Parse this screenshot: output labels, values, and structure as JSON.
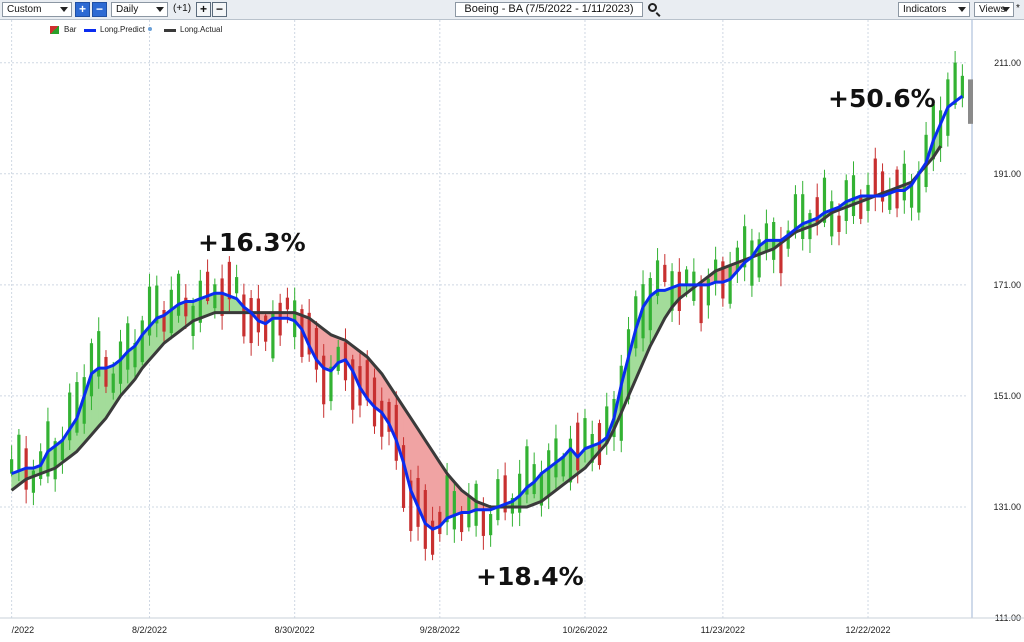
{
  "toolbar": {
    "layout_select": "Custom",
    "period_select": "Daily",
    "offset_label": "(+1)",
    "plus_label": "+",
    "minus_label": "−",
    "chart_title": "Boeing - BA (7/5/2022 - 1/11/2023)",
    "indicators_label": "Indicators",
    "views_label": "Views",
    "pin_label": "*"
  },
  "legend": [
    "Bar",
    "Long.Predict",
    "Long.Actual"
  ],
  "annotations": [
    "+16.3%",
    "+18.4%",
    "+50.6%"
  ],
  "colors": {
    "predict": "#0a2cf0",
    "actual": "#3a3a3a",
    "fill_up": "#a3dc9a",
    "fill_down": "#f0a3a3",
    "bull": "#33b233",
    "bear": "#c83030",
    "grid": "#cfd8e3"
  },
  "chart_data": {
    "type": "line",
    "title": "Boeing - BA (7/5/2022 - 1/11/2023)",
    "y_ticks": [
      "111.00",
      "131.00",
      "151.00",
      "171.00",
      "191.00",
      "211.00"
    ],
    "ylim": [
      111,
      216
    ],
    "x_ticks": [
      {
        "label": "/2022",
        "bar": 0
      },
      {
        "label": "8/2/2022",
        "bar": 19
      },
      {
        "label": "8/30/2022",
        "bar": 39
      },
      {
        "label": "9/28/2022",
        "bar": 59
      },
      {
        "label": "10/26/2022",
        "bar": 79
      },
      {
        "label": "11/23/2022",
        "bar": 98
      },
      {
        "label": "12/22/2022",
        "bar": 118
      }
    ],
    "grid": true,
    "legend_position": "top-left",
    "series": [
      {
        "name": "Long.Predict",
        "values": [
          137,
          137.5,
          138,
          138,
          138.5,
          141,
          142,
          143,
          145,
          147,
          151,
          155,
          156,
          156,
          156.5,
          157.5,
          159,
          160,
          162,
          163.5,
          165,
          165.5,
          166.5,
          167.5,
          168,
          168,
          168.5,
          169,
          169.5,
          169.5,
          169,
          168.5,
          167,
          166,
          164.5,
          164,
          165,
          165,
          165,
          164.5,
          163,
          160,
          157.5,
          156,
          155.5,
          157,
          157.5,
          155.5,
          152.5,
          150.5,
          149,
          148,
          146,
          143,
          139,
          134,
          131,
          128,
          127,
          127.5,
          129,
          129.5,
          130,
          130,
          130.5,
          130.5,
          130.5,
          131,
          131.5,
          132,
          133,
          134.5,
          135.5,
          137,
          138,
          139,
          140,
          141.5,
          140,
          141.5,
          142,
          142.5,
          143.5,
          147,
          153,
          158,
          163,
          167,
          169,
          170,
          170,
          170.5,
          171,
          171,
          171,
          171,
          171,
          171.5,
          171.5,
          172,
          173.5,
          175,
          176,
          178,
          179,
          179,
          179,
          180,
          181,
          182,
          182.5,
          183,
          184,
          184.5,
          185,
          186,
          186.5,
          187,
          187,
          187,
          187,
          187.5,
          188,
          188,
          189,
          191,
          193,
          197,
          200,
          203,
          204,
          205
        ]
      },
      {
        "name": "Long.Actual",
        "values": [
          134,
          135,
          136,
          136.5,
          137,
          137.5,
          138,
          139,
          140,
          141,
          142.5,
          144,
          145.5,
          147,
          149,
          151,
          152.5,
          154,
          156,
          157.5,
          159,
          160.5,
          161.5,
          162.5,
          163.5,
          164.5,
          165,
          165.5,
          166,
          166,
          166,
          166,
          166,
          166,
          166,
          166,
          166,
          166,
          166,
          166,
          165.5,
          165,
          164,
          163,
          162,
          161.5,
          161,
          160,
          159,
          158,
          156.5,
          155,
          153,
          151,
          149,
          147,
          145,
          143,
          141,
          139,
          137,
          135.5,
          134,
          133,
          132,
          131.5,
          131,
          131,
          131,
          131,
          131,
          131,
          131.5,
          132,
          133,
          134,
          135,
          136,
          137,
          138,
          139.5,
          141,
          142.5,
          145,
          148,
          151,
          154,
          157,
          160,
          162.5,
          165,
          167,
          168.5,
          169.5,
          170.5,
          171.5,
          172.5,
          173.5,
          174,
          174.5,
          175,
          175.5,
          176,
          176.5,
          177,
          177.5,
          178.5,
          179.5,
          180.5,
          181,
          181.5,
          182,
          183,
          184,
          184.5,
          185,
          185.5,
          186,
          186.5,
          187,
          187.5,
          188,
          188.5,
          189,
          189.5,
          191,
          192.5,
          194,
          196
        ]
      }
    ]
  }
}
